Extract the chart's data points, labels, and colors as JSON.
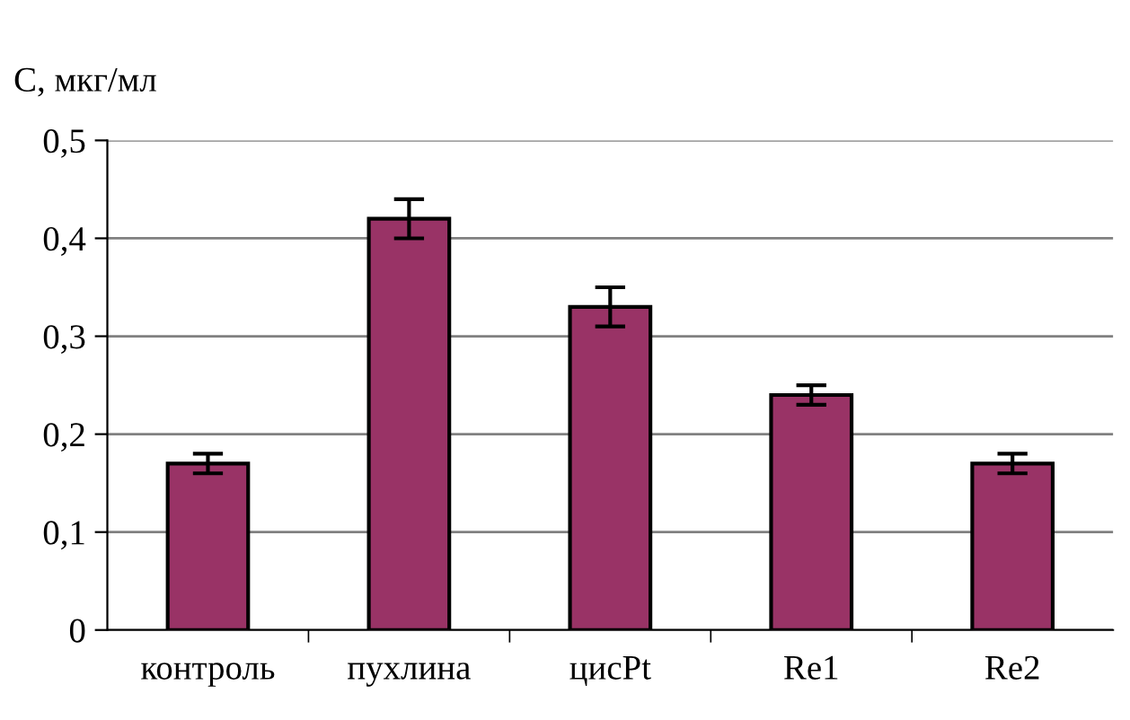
{
  "chart_data": {
    "type": "bar",
    "ylabel": "C, мкг/мл",
    "categories": [
      "контроль",
      "пухлина",
      "цисPt",
      "Re1",
      "Re2"
    ],
    "values": [
      0.17,
      0.42,
      0.33,
      0.24,
      0.17
    ],
    "errors": [
      0.01,
      0.02,
      0.02,
      0.01,
      0.01
    ],
    "color": "#993366",
    "ylim": [
      0,
      0.5
    ],
    "yticks": [
      0,
      {
        "value": 0.1,
        "label": "0,1"
      },
      {
        "value": 0.2,
        "label": "0,2"
      },
      {
        "value": 0.3,
        "label": "0,3"
      },
      {
        "value": 0.4,
        "label": "0,4"
      },
      {
        "value": 0.5,
        "label": "0,5"
      }
    ],
    "grid": "y",
    "legend": false
  }
}
